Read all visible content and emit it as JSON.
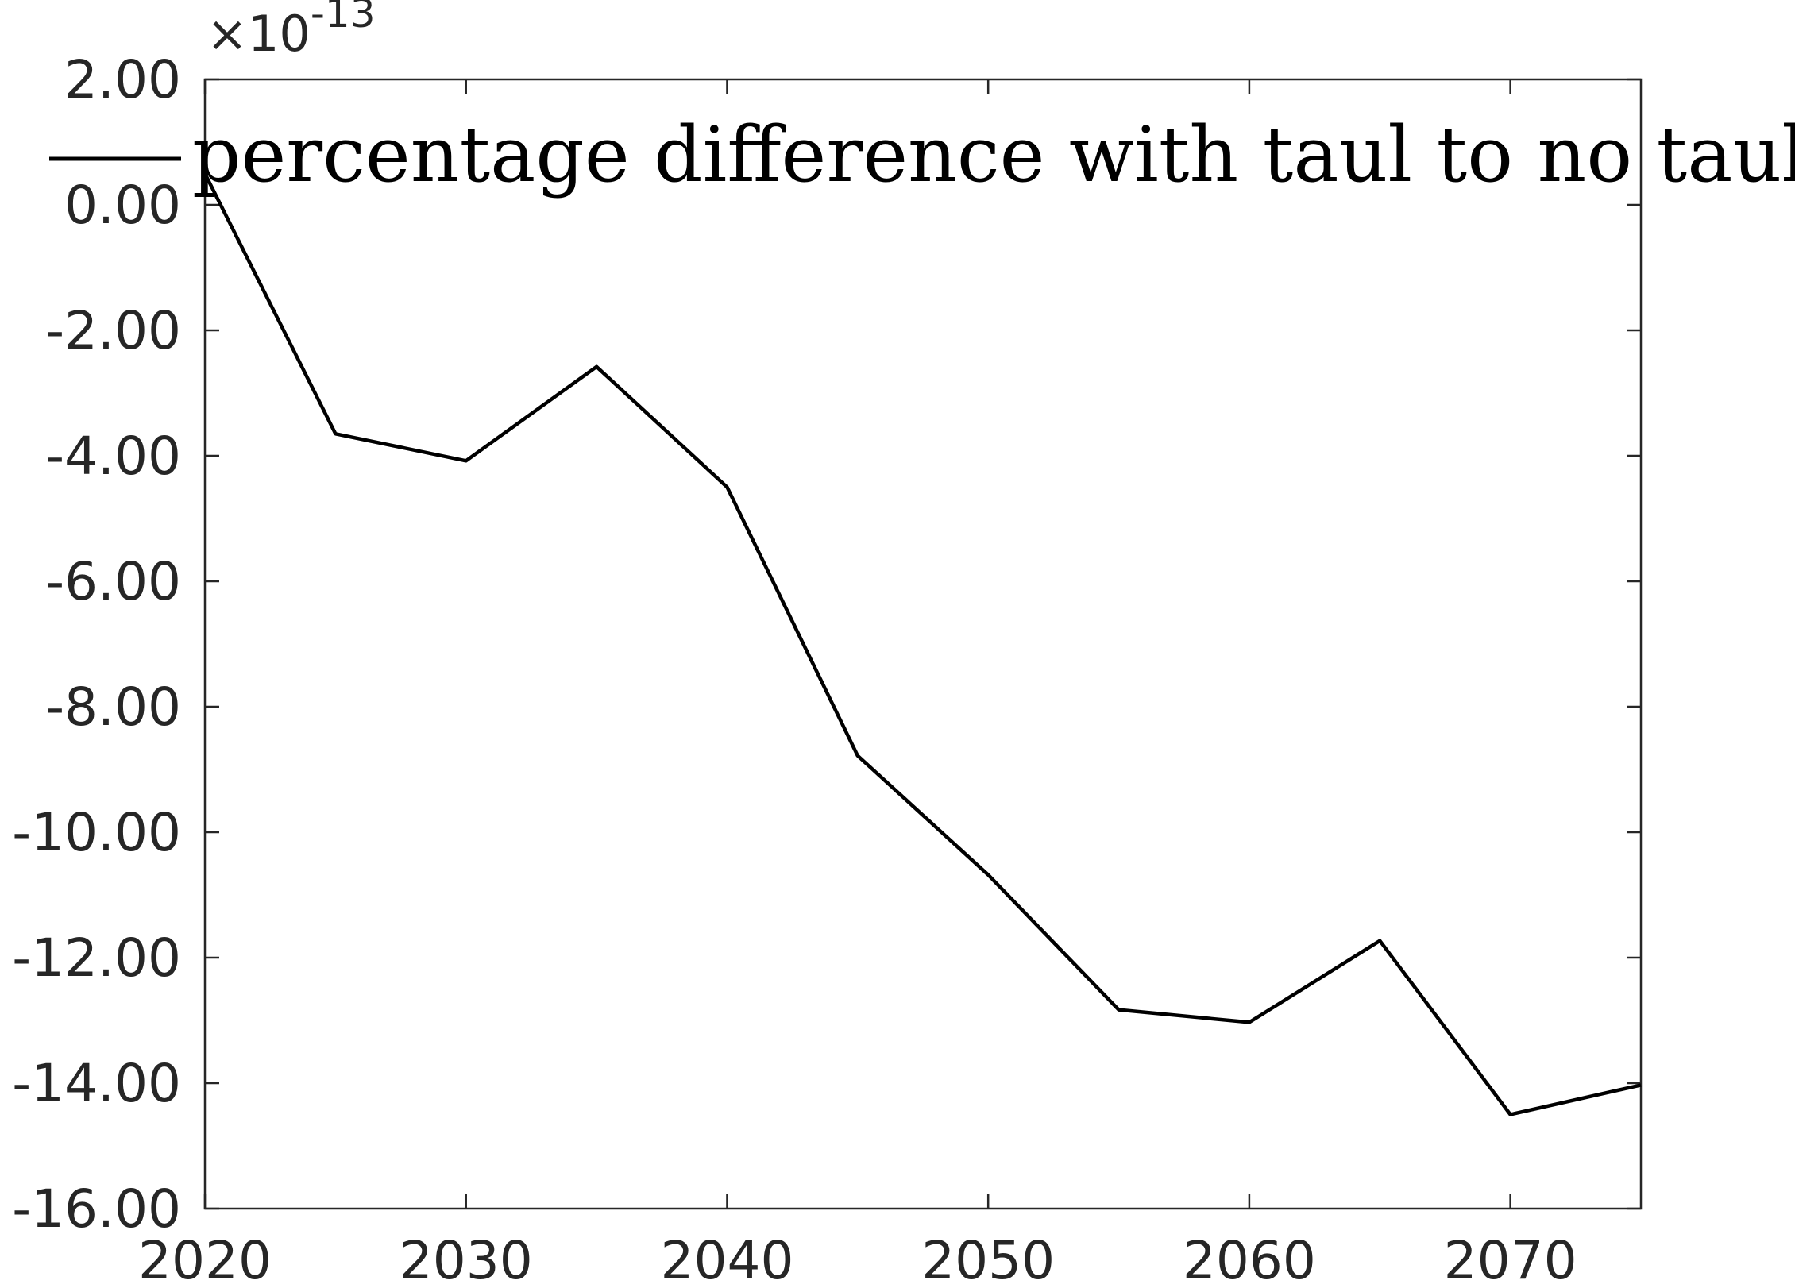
{
  "chart_data": {
    "type": "line",
    "title": "",
    "xlabel": "",
    "ylabel": "",
    "x": [
      2020,
      2025,
      2030,
      2035,
      2040,
      2045,
      2050,
      2055,
      2060,
      2065,
      2070,
      2075
    ],
    "series": [
      {
        "name": "percentage difference with taul to no taul",
        "values": [
          0.5,
          -3.65,
          -4.08,
          -2.58,
          -4.5,
          -8.78,
          -10.68,
          -12.83,
          -13.03,
          -11.73,
          -14.5,
          -14.03
        ],
        "color": "#000000"
      }
    ],
    "xlim": [
      2020,
      2075
    ],
    "ylim": [
      -16,
      2
    ],
    "x_ticks": [
      2020,
      2030,
      2040,
      2050,
      2060,
      2070
    ],
    "x_tick_labels": [
      "2020",
      "2030",
      "2040",
      "2050",
      "2060",
      "2070"
    ],
    "y_ticks": [
      2,
      0,
      -2,
      -4,
      -6,
      -8,
      -10,
      -12,
      -14,
      -16
    ],
    "y_tick_labels": [
      "2.00",
      "0.00",
      "-2.00",
      "-4.00",
      "-6.00",
      "-8.00",
      "-10.00",
      "-12.00",
      "-14.00",
      "-16.00"
    ],
    "y_exponent": {
      "prefix": "×10",
      "power": "-13"
    },
    "grid": false,
    "legend_position": "top"
  },
  "colors": {
    "axis": "#262626",
    "line": "#000000",
    "background": "#ffffff"
  }
}
